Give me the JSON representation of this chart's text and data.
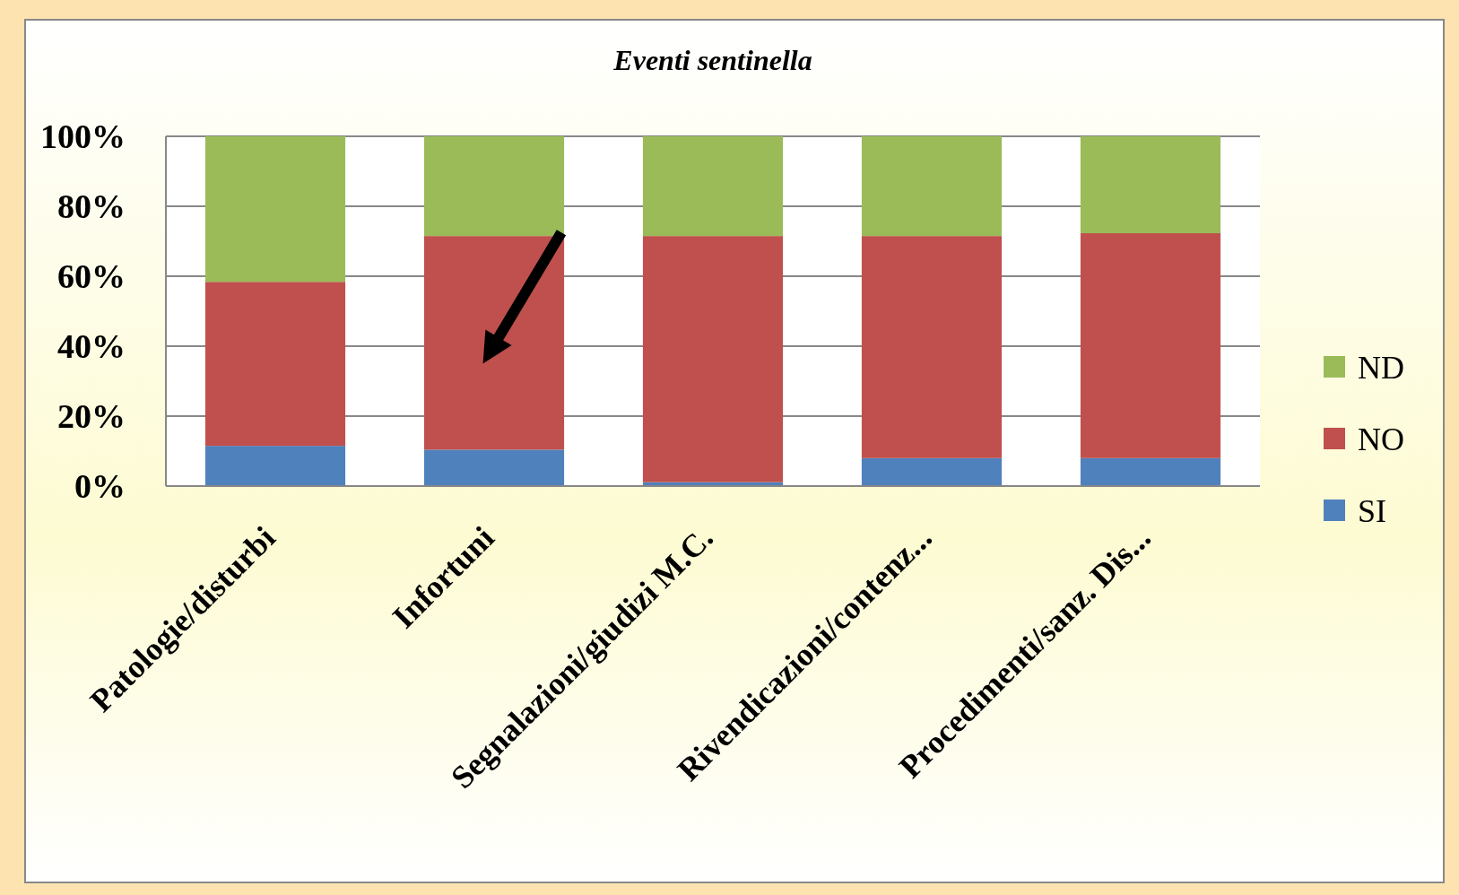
{
  "chart_data": {
    "type": "bar",
    "title": "Eventi sentinella",
    "stacked": true,
    "categories": [
      "Patologie/disturbi",
      "Infortuni",
      "Segnalazioni/giudizi M.C.",
      "Rivendicazioni/contenz...",
      "Procedimenti/sanz. Dis..."
    ],
    "series": [
      {
        "name": "SI",
        "color": "#4f81bd",
        "values": [
          11.5,
          10.4,
          1.1,
          8,
          8
        ]
      },
      {
        "name": "NO",
        "color": "#c0504d",
        "values": [
          46.9,
          61.1,
          70.4,
          63.5,
          64.3
        ]
      },
      {
        "name": "ND",
        "color": "#9bbb59",
        "values": [
          41.6,
          28.5,
          28.5,
          28.5,
          27.7
        ]
      }
    ],
    "ylim": [
      0,
      100
    ],
    "yticks": [
      {
        "value": 0,
        "label": "0%"
      },
      {
        "value": 20,
        "label": "20%"
      },
      {
        "value": 40,
        "label": "40%"
      },
      {
        "value": 60,
        "label": "60%"
      },
      {
        "value": 80,
        "label": "80%"
      },
      {
        "value": 100,
        "label": "100%"
      }
    ],
    "grid": "y",
    "legend": "right"
  }
}
